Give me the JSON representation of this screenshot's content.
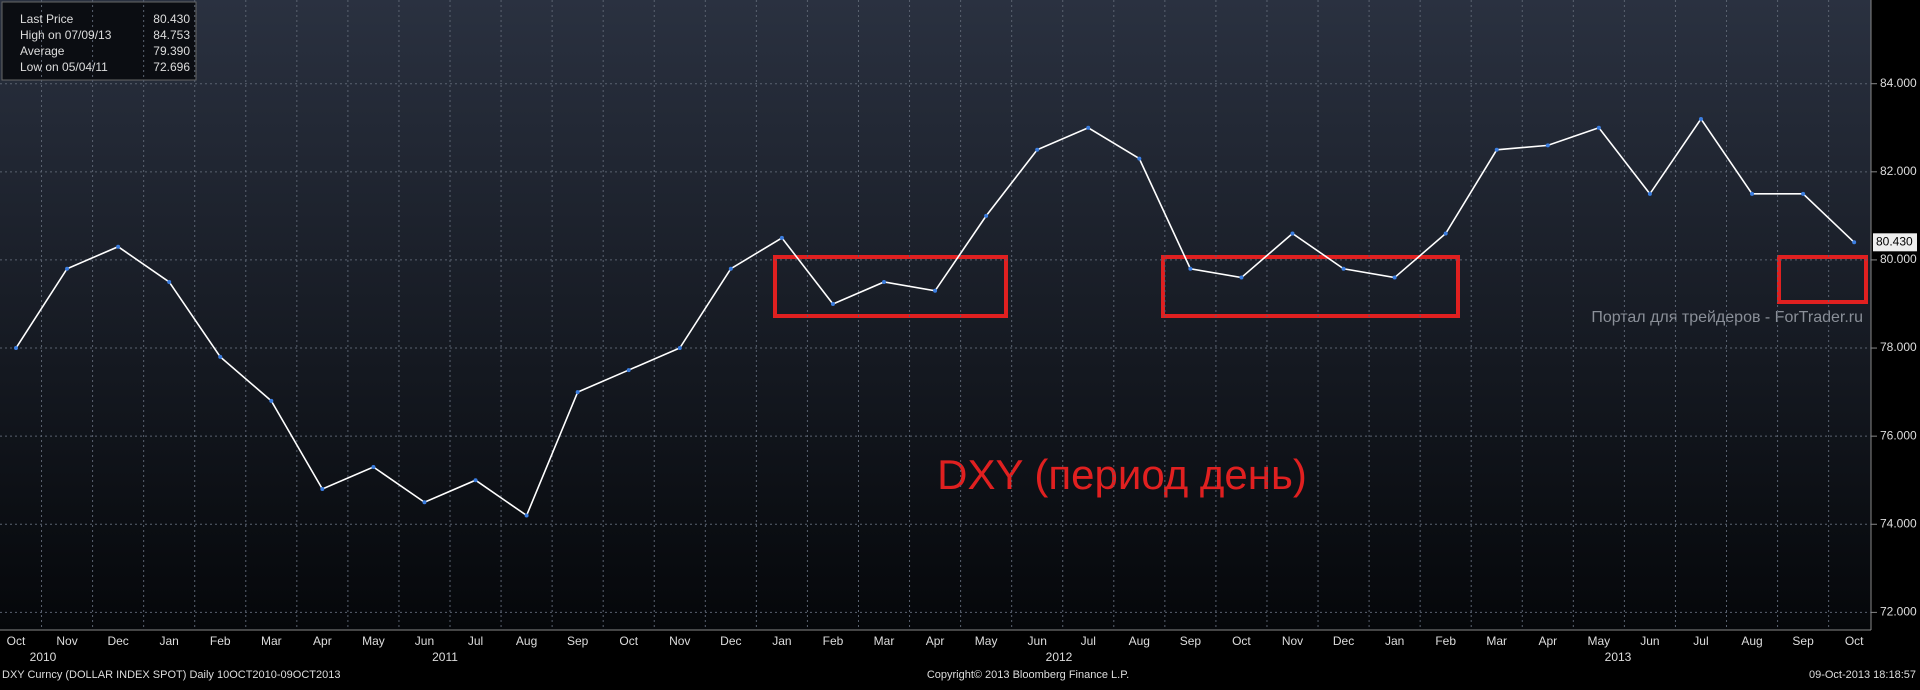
{
  "chart_data": {
    "type": "line",
    "categories": [
      "Oct",
      "Nov",
      "Dec",
      "Jan",
      "Feb",
      "Mar",
      "Apr",
      "May",
      "Jun",
      "Jul",
      "Aug",
      "Sep",
      "Oct",
      "Nov",
      "Dec",
      "Jan",
      "Feb",
      "Mar",
      "Apr",
      "May",
      "Jun",
      "Jul",
      "Aug",
      "Sep",
      "Oct",
      "Nov",
      "Dec",
      "Jan",
      "Feb",
      "Mar",
      "Apr",
      "May",
      "Jun",
      "Jul",
      "Aug",
      "Sep",
      "Oct"
    ],
    "years": [
      "2010",
      "2011",
      "2012",
      "2013"
    ],
    "series": [
      {
        "name": "Last Price",
        "color": "#ffffff",
        "values": [
          78.0,
          79.8,
          80.3,
          79.5,
          77.8,
          76.8,
          74.8,
          75.3,
          74.5,
          75.0,
          74.2,
          77.0,
          77.5,
          78.0,
          79.8,
          80.5,
          79.0,
          79.5,
          79.3,
          81.0,
          82.5,
          83.0,
          82.3,
          79.8,
          79.6,
          80.6,
          79.8,
          79.6,
          80.6,
          82.5,
          82.6,
          83.0,
          81.5,
          83.2,
          81.5,
          81.5,
          80.4
        ]
      }
    ],
    "legend": [
      {
        "label": "Last Price",
        "value": "80.430"
      },
      {
        "label": "High on 07/09/13",
        "value": "84.753"
      },
      {
        "label": "Average",
        "value": "79.390"
      },
      {
        "label": "Low on 05/04/11",
        "value": "72.696"
      }
    ],
    "last_tag": "80.430",
    "ylim": [
      71.6,
      85.9
    ],
    "yticks": [
      {
        "value": 72,
        "label": "72.000"
      },
      {
        "value": 74,
        "label": "74.000"
      },
      {
        "value": 76,
        "label": "76.000"
      },
      {
        "value": 78,
        "label": "78.000"
      },
      {
        "value": 80,
        "label": "80.000"
      },
      {
        "value": 82,
        "label": "82.000"
      },
      {
        "value": 84,
        "label": "84.000"
      }
    ],
    "grid": true,
    "annotation": "DXY (период день)",
    "watermark": "Портал для трейдеров - ForTrader.ru",
    "footer_left": "DXY Curncy (DOLLAR INDEX SPOT)  Daily 10OCT2010-09OCT2013",
    "footer_center": "Copyright© 2013 Bloomberg Finance L.P.",
    "footer_right": "09-Oct-2013 18:18:57"
  }
}
